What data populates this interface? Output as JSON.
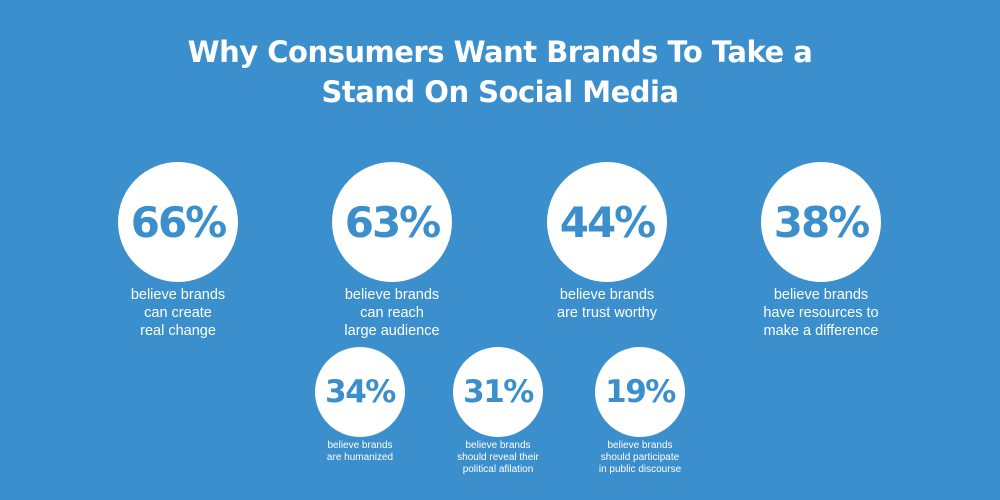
{
  "title": {
    "line1": "Why Consumers Want Brands To Take a",
    "line2": "Stand On Social Media"
  },
  "colors": {
    "background": "#3b8fcc",
    "circle": "#ffffff",
    "text": "#ffffff"
  },
  "stats": [
    {
      "value": "66%",
      "lines": [
        "believe brands",
        "can create",
        "real change"
      ]
    },
    {
      "value": "63%",
      "lines": [
        "believe brands",
        "can reach",
        "large audience"
      ]
    },
    {
      "value": "44%",
      "lines": [
        "believe brands",
        "are trust worthy"
      ]
    },
    {
      "value": "38%",
      "lines": [
        "believe brands",
        "have resources to",
        "make a difference"
      ]
    },
    {
      "value": "34%",
      "lines": [
        "believe brands",
        "are humanized"
      ]
    },
    {
      "value": "31%",
      "lines": [
        "believe brands",
        "should reveal their",
        "political afilation"
      ]
    },
    {
      "value": "19%",
      "lines": [
        "believe brands",
        "should participate",
        "in public discourse"
      ]
    }
  ]
}
